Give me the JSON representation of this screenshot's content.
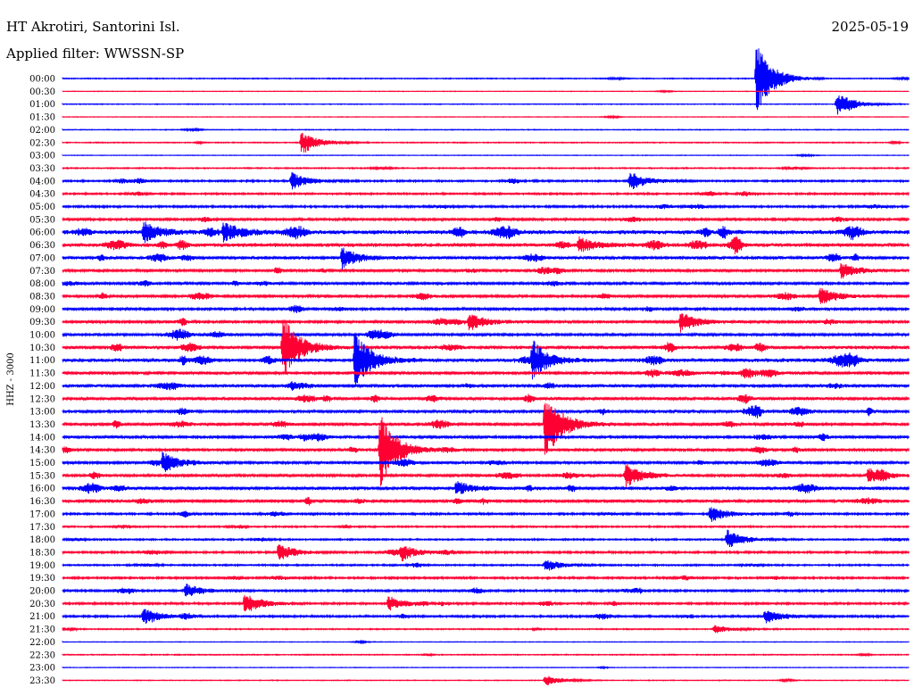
{
  "header": {
    "station": "HT Akrotiri, Santorini Isl.",
    "date": "2025-05-19",
    "filter_label": "Applied filter: WWSSN-SP"
  },
  "chart_data": {
    "type": "line",
    "title": "",
    "ylabel": "HHZ - 3000",
    "xlabel": "",
    "row_labels": [
      "00:00",
      "00:30",
      "01:00",
      "01:30",
      "02:00",
      "02:30",
      "03:00",
      "03:30",
      "04:00",
      "04:30",
      "05:00",
      "05:30",
      "06:00",
      "06:30",
      "07:00",
      "07:30",
      "08:00",
      "08:30",
      "09:00",
      "09:30",
      "10:00",
      "10:30",
      "11:00",
      "11:30",
      "12:00",
      "12:30",
      "13:00",
      "13:30",
      "14:00",
      "14:30",
      "15:00",
      "15:30",
      "16:00",
      "16:30",
      "17:00",
      "17:30",
      "18:00",
      "18:30",
      "19:00",
      "19:30",
      "20:00",
      "20:30",
      "21:00",
      "21:30",
      "22:00",
      "22:30",
      "23:00",
      "23:30"
    ],
    "colors": {
      "even_rows": "#0000ff",
      "odd_rows": "#ff0033"
    },
    "noise_levels": [
      0.5,
      0.3,
      0.4,
      0.3,
      0.4,
      0.5,
      0.3,
      0.6,
      0.9,
      0.9,
      1.0,
      1.2,
      2.2,
      2.0,
      1.6,
      1.3,
      1.3,
      1.3,
      1.2,
      1.3,
      1.4,
      1.6,
      1.9,
      1.5,
      1.6,
      1.6,
      1.5,
      1.5,
      1.4,
      1.3,
      1.3,
      1.4,
      1.6,
      1.5,
      1.0,
      0.8,
      0.8,
      1.0,
      0.8,
      1.0,
      1.0,
      1.0,
      1.0,
      0.6,
      0.3,
      0.5,
      0.3,
      0.4
    ],
    "events": [
      {
        "row": 0,
        "t": 0.82,
        "amp": 40
      },
      {
        "row": 2,
        "t": 0.915,
        "amp": 13
      },
      {
        "row": 5,
        "t": 0.282,
        "amp": 14
      },
      {
        "row": 8,
        "t": 0.27,
        "amp": 10
      },
      {
        "row": 8,
        "t": 0.67,
        "amp": 11
      },
      {
        "row": 12,
        "t": 0.095,
        "amp": 12
      },
      {
        "row": 12,
        "t": 0.19,
        "amp": 11
      },
      {
        "row": 13,
        "t": 0.61,
        "amp": 8
      },
      {
        "row": 14,
        "t": 0.33,
        "amp": 12
      },
      {
        "row": 15,
        "t": 0.92,
        "amp": 9
      },
      {
        "row": 17,
        "t": 0.895,
        "amp": 10
      },
      {
        "row": 19,
        "t": 0.48,
        "amp": 10
      },
      {
        "row": 19,
        "t": 0.73,
        "amp": 12
      },
      {
        "row": 21,
        "t": 0.26,
        "amp": 38
      },
      {
        "row": 22,
        "t": 0.345,
        "amp": 32
      },
      {
        "row": 22,
        "t": 0.555,
        "amp": 18
      },
      {
        "row": 27,
        "t": 0.57,
        "amp": 42
      },
      {
        "row": 29,
        "t": 0.375,
        "amp": 42
      },
      {
        "row": 30,
        "t": 0.118,
        "amp": 12
      },
      {
        "row": 31,
        "t": 0.665,
        "amp": 14
      },
      {
        "row": 31,
        "t": 0.952,
        "amp": 8
      },
      {
        "row": 32,
        "t": 0.465,
        "amp": 8
      },
      {
        "row": 34,
        "t": 0.765,
        "amp": 9
      },
      {
        "row": 36,
        "t": 0.785,
        "amp": 11
      },
      {
        "row": 37,
        "t": 0.255,
        "amp": 10
      },
      {
        "row": 37,
        "t": 0.4,
        "amp": 9
      },
      {
        "row": 38,
        "t": 0.57,
        "amp": 7
      },
      {
        "row": 40,
        "t": 0.145,
        "amp": 8
      },
      {
        "row": 41,
        "t": 0.215,
        "amp": 12
      },
      {
        "row": 41,
        "t": 0.385,
        "amp": 8
      },
      {
        "row": 42,
        "t": 0.095,
        "amp": 10
      },
      {
        "row": 42,
        "t": 0.83,
        "amp": 8
      },
      {
        "row": 43,
        "t": 0.77,
        "amp": 5
      },
      {
        "row": 47,
        "t": 0.57,
        "amp": 6
      }
    ]
  }
}
